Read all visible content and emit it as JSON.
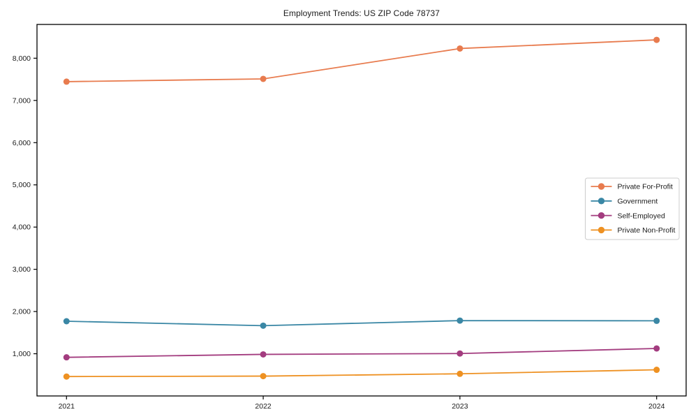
{
  "chart_data": {
    "type": "line",
    "title": "Employment Trends: US ZIP Code 78737",
    "xlabel": "",
    "ylabel": "",
    "x": [
      2021,
      2022,
      2023,
      2024
    ],
    "x_tick_labels": [
      "2021",
      "2022",
      "2023",
      "2024"
    ],
    "y_tick_values": [
      1000,
      2000,
      3000,
      4000,
      5000,
      6000,
      7000,
      8000
    ],
    "y_tick_labels": [
      "1,000",
      "2,000",
      "3,000",
      "4,000",
      "5,000",
      "6,000",
      "7,000",
      "8,000"
    ],
    "xlim": [
      2020.85,
      2024.15
    ],
    "ylim": [
      0,
      8800
    ],
    "grid": false,
    "legend_position": "center-right",
    "axis_color": "#000000",
    "series": [
      {
        "name": "Private For-Profit",
        "color": "#E87B4E",
        "values": [
          7445,
          7510,
          8230,
          8435
        ]
      },
      {
        "name": "Government",
        "color": "#3A87A5",
        "values": [
          1770,
          1665,
          1785,
          1780
        ]
      },
      {
        "name": "Self-Employed",
        "color": "#A33C7F",
        "values": [
          915,
          985,
          1005,
          1125
        ]
      },
      {
        "name": "Private Non-Profit",
        "color": "#EE9122",
        "values": [
          460,
          470,
          525,
          620
        ]
      }
    ]
  }
}
